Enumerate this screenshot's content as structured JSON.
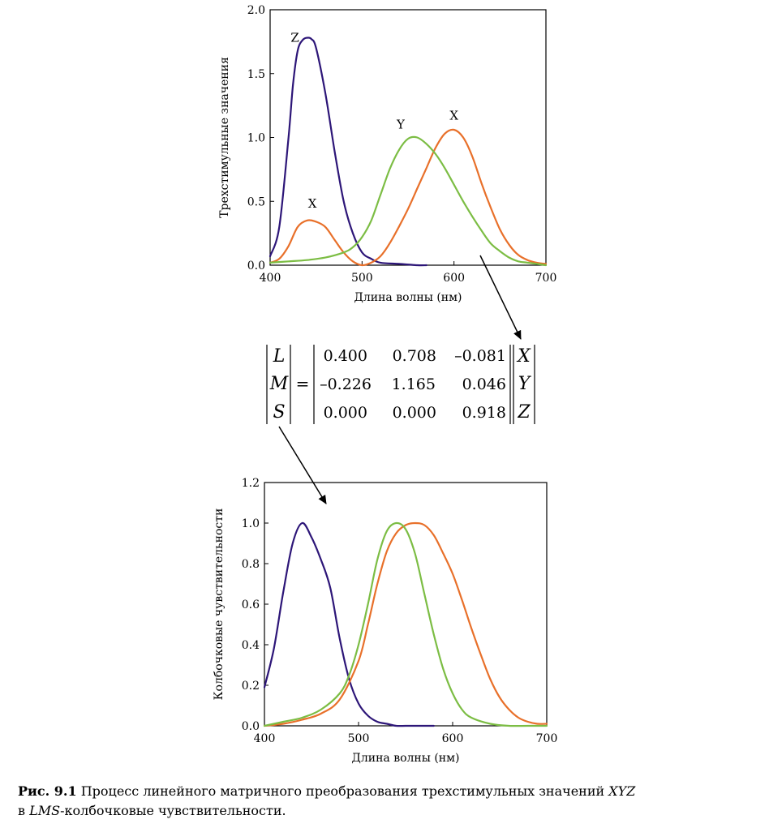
{
  "figure": {
    "matrix": {
      "lhs": [
        "L",
        "M",
        "S"
      ],
      "equals": "=",
      "rows": [
        [
          "0.400",
          "0.708",
          "–0.081"
        ],
        [
          "–0.226",
          "1.165",
          "0.046"
        ],
        [
          "0.000",
          "0.000",
          "0.918"
        ]
      ],
      "rhs": [
        "X",
        "Y",
        "Z"
      ]
    },
    "caption": {
      "label": "Рис. 9.1",
      "text_1": "Процесс линейного матричного преобразования трехстимульных значений",
      "xyz": "XYZ",
      "text_2": "в",
      "lms": "LMS",
      "text_3": "-колбочковые чувствительности."
    }
  },
  "colors": {
    "purple": "#2d1678",
    "orange": "#e8702a",
    "green": "#7cbd44"
  },
  "chart_data": [
    {
      "type": "line",
      "title": "",
      "xlabel": "Длина волны (нм)",
      "ylabel": "Трехстимульные значения",
      "xlim": [
        400,
        700
      ],
      "ylim": [
        0,
        2
      ],
      "xticks": [
        "400",
        "500",
        "600",
        "700"
      ],
      "yticks": [
        "0.0",
        "0.5",
        "1.0",
        "1.5",
        "2.0"
      ],
      "grid": false,
      "annotations": [
        {
          "text": "Z",
          "x": 427,
          "y": 1.75
        },
        {
          "text": "X",
          "x": 446,
          "y": 0.45
        },
        {
          "text": "Y",
          "x": 542,
          "y": 1.07
        },
        {
          "text": "X",
          "x": 600,
          "y": 1.14
        }
      ],
      "series": [
        {
          "color": "purple",
          "x": [
            400,
            410,
            420,
            425,
            430,
            435,
            440,
            445,
            450,
            460,
            470,
            480,
            490,
            500,
            510,
            520,
            540,
            560,
            570
          ],
          "y": [
            0.07,
            0.3,
            1.0,
            1.42,
            1.68,
            1.76,
            1.78,
            1.77,
            1.7,
            1.35,
            0.9,
            0.5,
            0.25,
            0.1,
            0.05,
            0.02,
            0.01,
            0.0,
            0.0
          ]
        },
        {
          "color": "orange",
          "x": [
            400,
            410,
            420,
            430,
            440,
            450,
            460,
            470,
            480,
            490,
            500,
            510,
            520,
            530,
            540,
            550,
            560,
            570,
            580,
            590,
            600,
            610,
            620,
            630,
            640,
            650,
            660,
            670,
            680,
            690,
            700
          ],
          "y": [
            0.02,
            0.05,
            0.15,
            0.3,
            0.35,
            0.34,
            0.3,
            0.2,
            0.1,
            0.03,
            0.0,
            0.02,
            0.07,
            0.17,
            0.3,
            0.44,
            0.6,
            0.76,
            0.92,
            1.03,
            1.06,
            1.0,
            0.85,
            0.64,
            0.45,
            0.28,
            0.16,
            0.08,
            0.04,
            0.02,
            0.01
          ]
        },
        {
          "color": "green",
          "x": [
            400,
            420,
            440,
            460,
            480,
            490,
            500,
            510,
            520,
            530,
            540,
            550,
            560,
            570,
            580,
            590,
            600,
            610,
            620,
            630,
            640,
            650,
            660,
            670,
            680,
            690,
            700
          ],
          "y": [
            0.02,
            0.03,
            0.04,
            0.06,
            0.1,
            0.14,
            0.22,
            0.35,
            0.55,
            0.75,
            0.9,
            0.99,
            1.0,
            0.95,
            0.87,
            0.76,
            0.63,
            0.5,
            0.38,
            0.27,
            0.17,
            0.11,
            0.06,
            0.03,
            0.02,
            0.01,
            0.0
          ]
        }
      ]
    },
    {
      "type": "line",
      "title": "",
      "xlabel": "Длина волны (нм)",
      "ylabel": "Колбочковые чувствительности",
      "xlim": [
        400,
        700
      ],
      "ylim": [
        0,
        1.2
      ],
      "xticks": [
        "400",
        "500",
        "600",
        "700"
      ],
      "yticks": [
        "0.0",
        "0.2",
        "0.4",
        "0.6",
        "0.8",
        "1.0",
        "1.2"
      ],
      "grid": false,
      "series": [
        {
          "color": "purple",
          "x": [
            400,
            410,
            420,
            430,
            440,
            450,
            460,
            470,
            480,
            490,
            500,
            510,
            520,
            530,
            540,
            550,
            560,
            570,
            580
          ],
          "y": [
            0.19,
            0.38,
            0.66,
            0.9,
            1.0,
            0.93,
            0.82,
            0.68,
            0.43,
            0.23,
            0.11,
            0.05,
            0.02,
            0.01,
            0.0,
            0.0,
            0.0,
            0.0,
            0.0
          ]
        },
        {
          "color": "orange",
          "x": [
            400,
            420,
            440,
            460,
            480,
            500,
            510,
            520,
            530,
            540,
            550,
            560,
            570,
            580,
            590,
            600,
            610,
            620,
            630,
            640,
            650,
            660,
            670,
            680,
            690,
            700
          ],
          "y": [
            0.0,
            0.01,
            0.03,
            0.06,
            0.13,
            0.32,
            0.5,
            0.7,
            0.86,
            0.95,
            0.99,
            1.0,
            0.99,
            0.94,
            0.85,
            0.75,
            0.62,
            0.48,
            0.35,
            0.23,
            0.14,
            0.08,
            0.04,
            0.02,
            0.01,
            0.01
          ]
        },
        {
          "color": "green",
          "x": [
            400,
            420,
            440,
            460,
            480,
            490,
            500,
            510,
            520,
            530,
            540,
            550,
            560,
            570,
            580,
            590,
            600,
            610,
            620,
            640,
            660,
            680,
            700
          ],
          "y": [
            0.0,
            0.02,
            0.04,
            0.08,
            0.16,
            0.25,
            0.4,
            0.6,
            0.82,
            0.96,
            1.0,
            0.97,
            0.85,
            0.65,
            0.45,
            0.28,
            0.16,
            0.08,
            0.04,
            0.01,
            0.0,
            0.0,
            0.0
          ]
        }
      ]
    }
  ]
}
